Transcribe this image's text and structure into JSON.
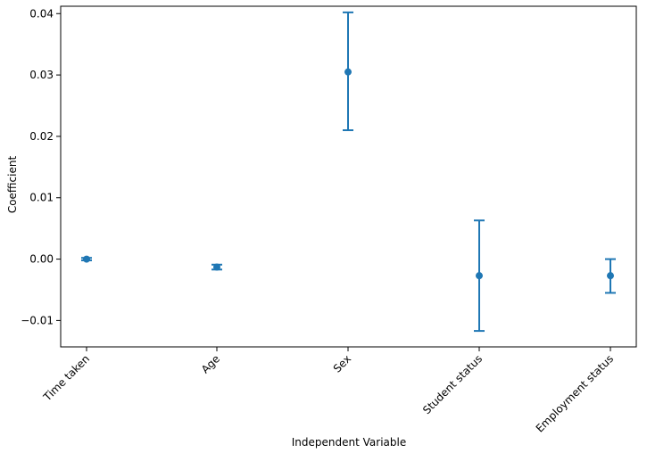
{
  "chart_data": {
    "type": "scatter",
    "title": "",
    "xlabel": "Independent Variable",
    "ylabel": "Coefficient",
    "categories": [
      "Time taken",
      "Age",
      "Sex",
      "Student status",
      "Employment status"
    ],
    "series": [
      {
        "values": [
          0.0,
          -0.0013,
          0.0305,
          -0.0027,
          -0.0027
        ],
        "ci_lower": [
          -0.0002,
          -0.0017,
          0.021,
          -0.0117,
          -0.0055
        ],
        "ci_upper": [
          0.0002,
          -0.0009,
          0.0402,
          0.0063,
          0.0
        ]
      }
    ],
    "yticks": [
      "−0.01",
      "0.00",
      "0.01",
      "0.02",
      "0.03",
      "0.04"
    ],
    "ytick_values": [
      -0.01,
      0.0,
      0.01,
      0.02,
      0.03,
      0.04
    ],
    "ylim": [
      -0.0143,
      0.0412
    ],
    "grid": false,
    "legend": "none",
    "marker_color": "#1f77b4",
    "error_bars": true,
    "xtick_rotation": "45 degrees"
  }
}
